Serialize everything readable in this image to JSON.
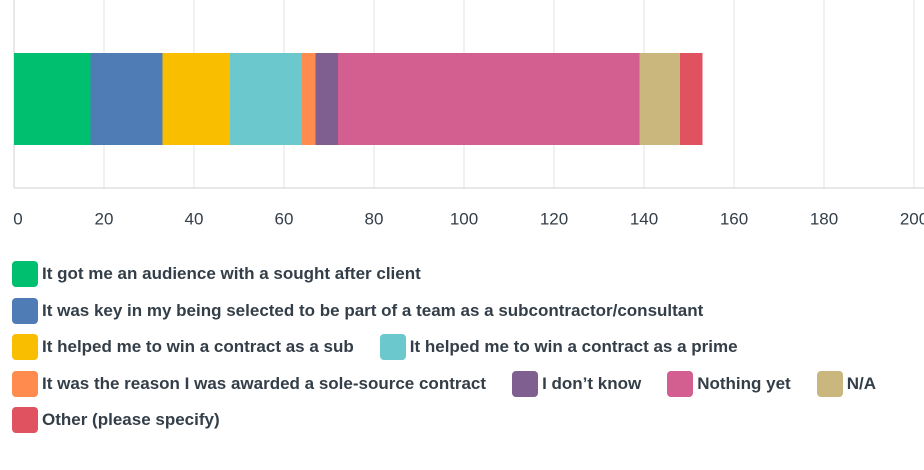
{
  "chart_data": {
    "type": "stacked_bar",
    "orientation": "horizontal",
    "xlim": [
      0,
      200
    ],
    "xticks": [
      0,
      20,
      40,
      60,
      80,
      100,
      120,
      140,
      160,
      180,
      200
    ],
    "grid": true,
    "series": [
      {
        "name": "It got me an audience with a sought after client",
        "color": "#00bf6f",
        "values": [
          17
        ]
      },
      {
        "name": "It was key in my being selected to be part of a team as a subcontractor/consultant",
        "color": "#507cb6",
        "values": [
          16
        ]
      },
      {
        "name": "It helped me to win a contract as a sub",
        "color": "#f9be00",
        "values": [
          15
        ]
      },
      {
        "name": "It helped me to win a contract as a prime",
        "color": "#6bc8cd",
        "values": [
          16
        ]
      },
      {
        "name": "It was the reason I was awarded a sole-source contract",
        "color": "#ff8b4f",
        "values": [
          3
        ]
      },
      {
        "name": "I don’t know",
        "color": "#7f5f90",
        "values": [
          5
        ]
      },
      {
        "name": "Nothing yet",
        "color": "#d25f90",
        "values": [
          67
        ]
      },
      {
        "name": "N/A",
        "color": "#c9b77d",
        "values": [
          9
        ]
      },
      {
        "name": "Other (please specify)",
        "color": "#e05260",
        "values": [
          5
        ]
      }
    ]
  }
}
